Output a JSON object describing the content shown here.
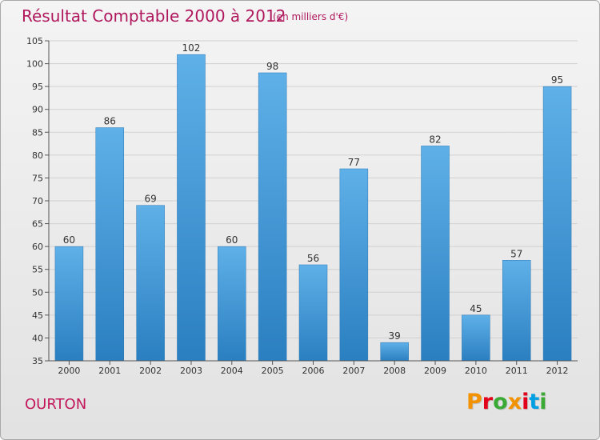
{
  "header": {
    "title": "Résultat Comptable 2000 à 2012",
    "subtitle": "(en milliers d'€)"
  },
  "footer": {
    "commune": "OURTON",
    "logo_text": "Proxiti"
  },
  "colors": {
    "bar_top": "#5fb0e8",
    "bar_bottom": "#2a7fc0",
    "title": "#b0185e",
    "logo_letters": [
      "#f39200",
      "#e2001a",
      "#3aaa35",
      "#f39200",
      "#e2001a",
      "#009fe3",
      "#3aaa35"
    ]
  },
  "chart_data": {
    "type": "bar",
    "title": "Résultat Comptable 2000 à 2012",
    "subtitle": "(en milliers d'€)",
    "categories": [
      "2000",
      "2001",
      "2002",
      "2003",
      "2004",
      "2005",
      "2006",
      "2007",
      "2008",
      "2009",
      "2010",
      "2011",
      "2012"
    ],
    "values": [
      60,
      86,
      69,
      102,
      60,
      98,
      56,
      77,
      39,
      82,
      45,
      57,
      95
    ],
    "ylim": [
      35,
      105
    ],
    "yticks": [
      35,
      40,
      45,
      50,
      55,
      60,
      65,
      70,
      75,
      80,
      85,
      90,
      95,
      100,
      105
    ],
    "grid": "horizontal",
    "data_labels": true
  }
}
